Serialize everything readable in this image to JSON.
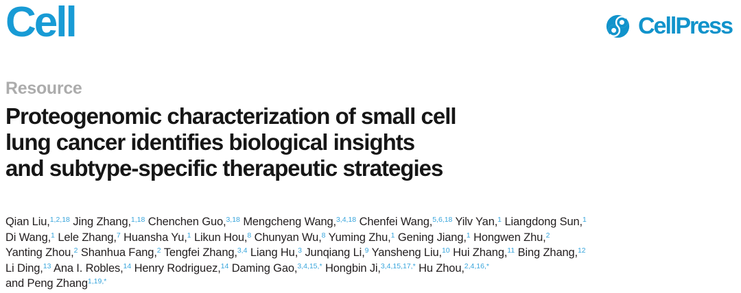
{
  "masthead": {
    "journal_name": "Cell",
    "publisher_name": "CellPress"
  },
  "article": {
    "section_label": "Resource",
    "title_lines": [
      "Proteogenomic characterization of small cell",
      "lung cancer identifies biological insights",
      "and subtype-specific therapeutic strategies"
    ],
    "author_lines": [
      [
        {
          "name": "Qian Liu,",
          "sup": "1,2,18"
        },
        {
          "name": "Jing Zhang,",
          "sup": "1,18"
        },
        {
          "name": "Chenchen Guo,",
          "sup": "3,18"
        },
        {
          "name": "Mengcheng Wang,",
          "sup": "3,4,18"
        },
        {
          "name": "Chenfei Wang,",
          "sup": "5,6,18"
        },
        {
          "name": "Yilv Yan,",
          "sup": "1"
        },
        {
          "name": "Liangdong Sun,",
          "sup": "1"
        }
      ],
      [
        {
          "name": "Di Wang,",
          "sup": "1"
        },
        {
          "name": "Lele Zhang,",
          "sup": "7"
        },
        {
          "name": "Huansha Yu,",
          "sup": "1"
        },
        {
          "name": "Likun Hou,",
          "sup": "8"
        },
        {
          "name": "Chunyan Wu,",
          "sup": "8"
        },
        {
          "name": "Yuming Zhu,",
          "sup": "1"
        },
        {
          "name": "Gening Jiang,",
          "sup": "1"
        },
        {
          "name": "Hongwen Zhu,",
          "sup": "2"
        }
      ],
      [
        {
          "name": "Yanting Zhou,",
          "sup": "2"
        },
        {
          "name": "Shanhua Fang,",
          "sup": "2"
        },
        {
          "name": "Tengfei Zhang,",
          "sup": "3,4"
        },
        {
          "name": "Liang Hu,",
          "sup": "3"
        },
        {
          "name": "Junqiang Li,",
          "sup": "9"
        },
        {
          "name": "Yansheng Liu,",
          "sup": "10"
        },
        {
          "name": "Hui Zhang,",
          "sup": "11"
        },
        {
          "name": "Bing Zhang,",
          "sup": "12"
        }
      ],
      [
        {
          "name": "Li Ding,",
          "sup": "13"
        },
        {
          "name": "Ana I. Robles,",
          "sup": "14"
        },
        {
          "name": "Henry Rodriguez,",
          "sup": "14"
        },
        {
          "name": "Daming Gao,",
          "sup": "3,4,15,*"
        },
        {
          "name": "Hongbin Ji,",
          "sup": "3,4,15,17,*"
        },
        {
          "name": "Hu Zhou,",
          "sup": "2,4,16,*"
        }
      ],
      [
        {
          "name": "and Peng Zhang",
          "sup": "1,19,*"
        }
      ]
    ]
  },
  "colors": {
    "brand_blue": "#189bd5",
    "publisher_blue": "#1193cb",
    "superscript_blue": "#38a5dc",
    "section_label_gray": "#acacac",
    "text_black": "#161616",
    "author_text": "#242021",
    "background": "#ffffff"
  }
}
